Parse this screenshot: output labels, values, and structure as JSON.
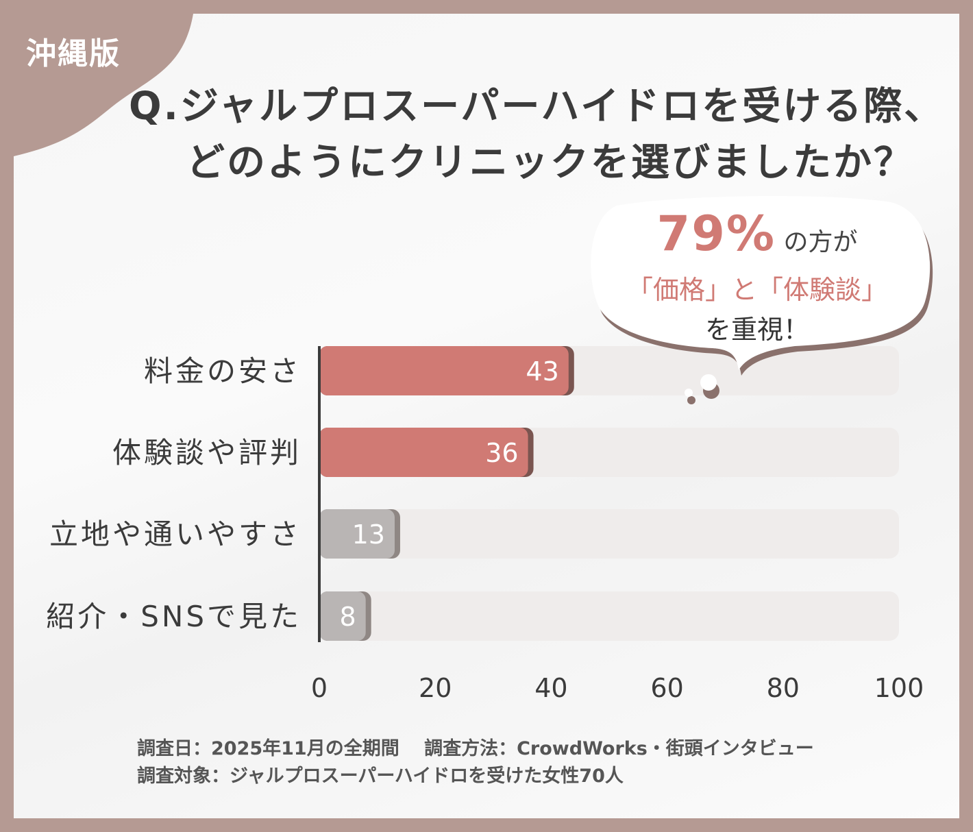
{
  "edition_label": "沖縄版",
  "title_lines": [
    "Q.ジャルプロスーパーハイドロを受ける際、",
    "どのようにクリニックを選びましたか？"
  ],
  "callout": {
    "percent": "79%",
    "line1_rest": "の方が",
    "line2": "「価格」と「体験談」",
    "line3": "を重視！"
  },
  "colors": {
    "frame": "#b59a93",
    "highlight_bar": "#d07a74",
    "other_bar": "#b9b5b4",
    "track": "#efeceb",
    "text": "#3b3b3b"
  },
  "chart_data": {
    "type": "bar",
    "orientation": "horizontal",
    "categories": [
      "料金の安さ",
      "体験談や評判",
      "立地や通いやすさ",
      "紹介・SNSで見た"
    ],
    "values": [
      43,
      36,
      13,
      8
    ],
    "highlighted": [
      true,
      true,
      false,
      false
    ],
    "xlim": [
      0,
      100
    ],
    "xticks": [
      "0",
      "20",
      "40",
      "60",
      "80",
      "100"
    ],
    "grid": false
  },
  "footer": {
    "line1": "調査日：2025年11月の全期間　 調査方法：CrowdWorks・街頭インタビュー",
    "line2": "調査対象：ジャルプロスーパーハイドロを受けた女性70人"
  }
}
